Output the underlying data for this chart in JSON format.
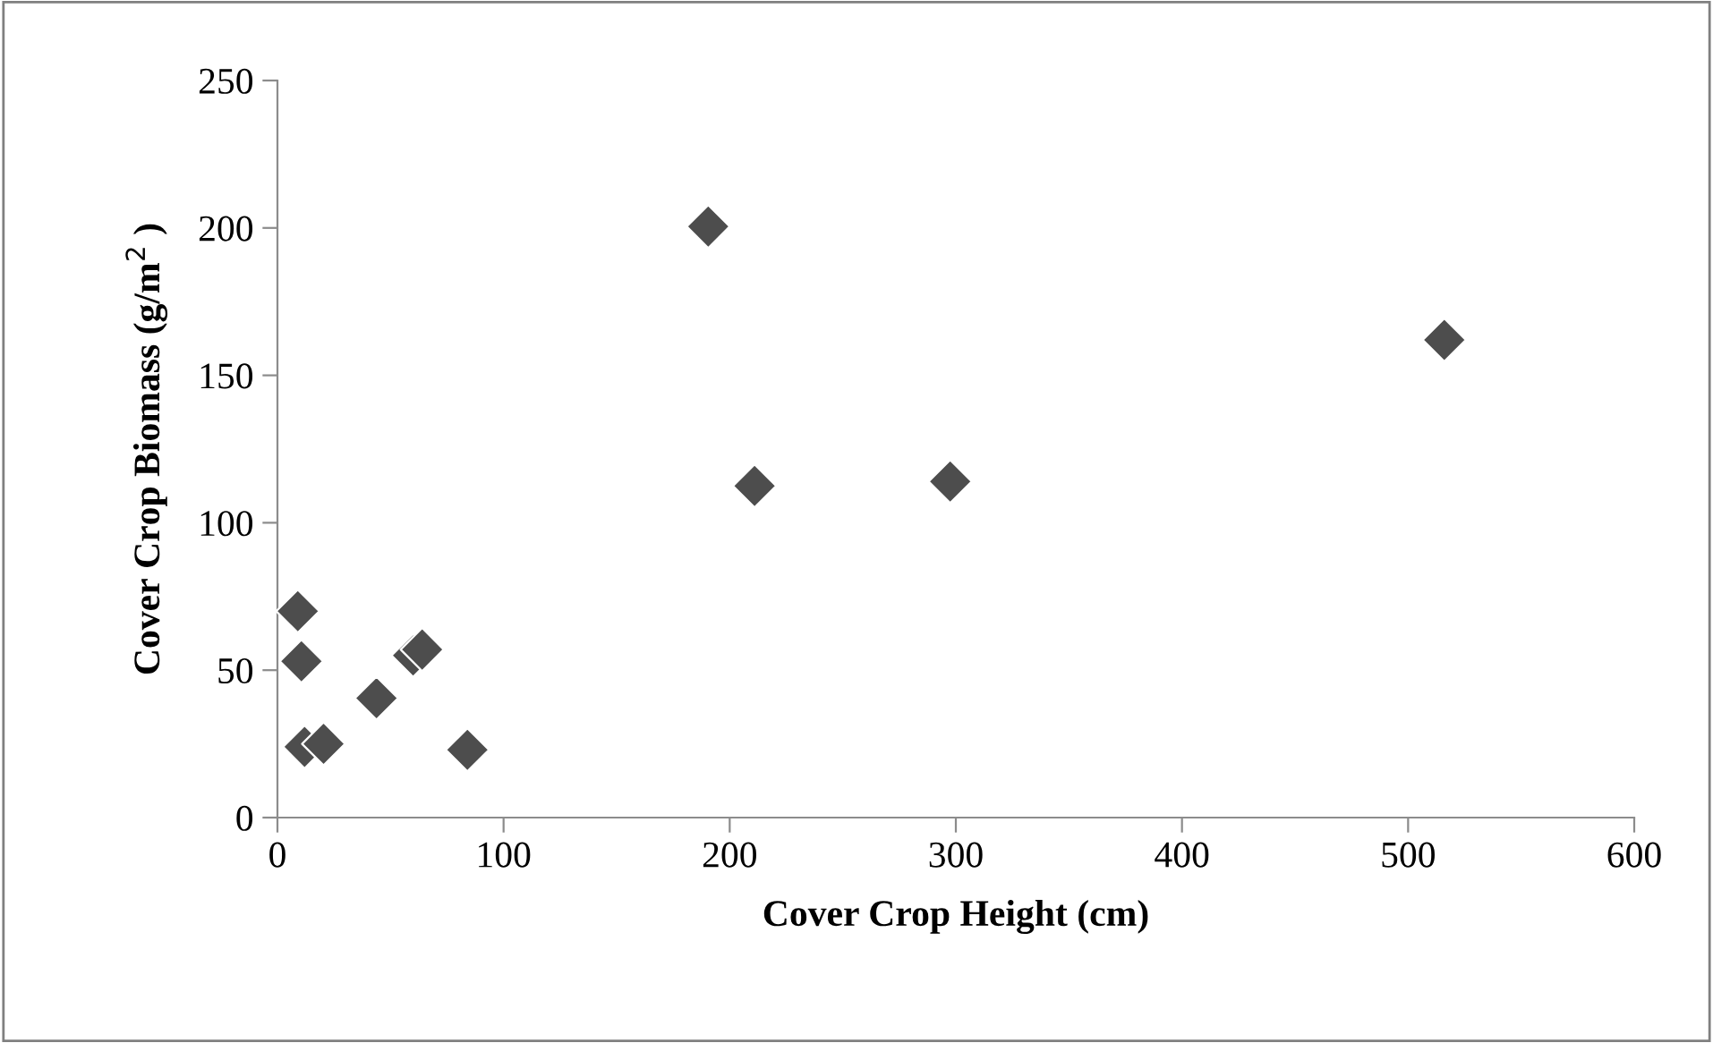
{
  "chart_data": {
    "type": "scatter",
    "xlabel": "Cover Crop Height (cm)",
    "ylabel": "Cover Crop Biomass (g/m$^{2}$ )",
    "x": [
      9,
      10.6,
      12,
      20.4,
      43.8,
      60,
      64,
      84,
      190.5,
      211,
      297.5,
      516
    ],
    "series": [
      {
        "color": "#4d4d4d",
        "values": [
          70,
          53,
          24,
          25,
          40.5,
          55,
          57,
          23,
          200.5,
          112.5,
          114,
          162
        ]
      }
    ],
    "marker": "diamond",
    "xlim": [
      0,
      600
    ],
    "xticks": [
      0,
      100,
      200,
      300,
      400,
      500,
      600
    ],
    "ylim": [
      0,
      250
    ],
    "yticks": [
      0,
      50,
      100,
      150,
      200,
      250
    ],
    "grid": false,
    "legend": false
  }
}
